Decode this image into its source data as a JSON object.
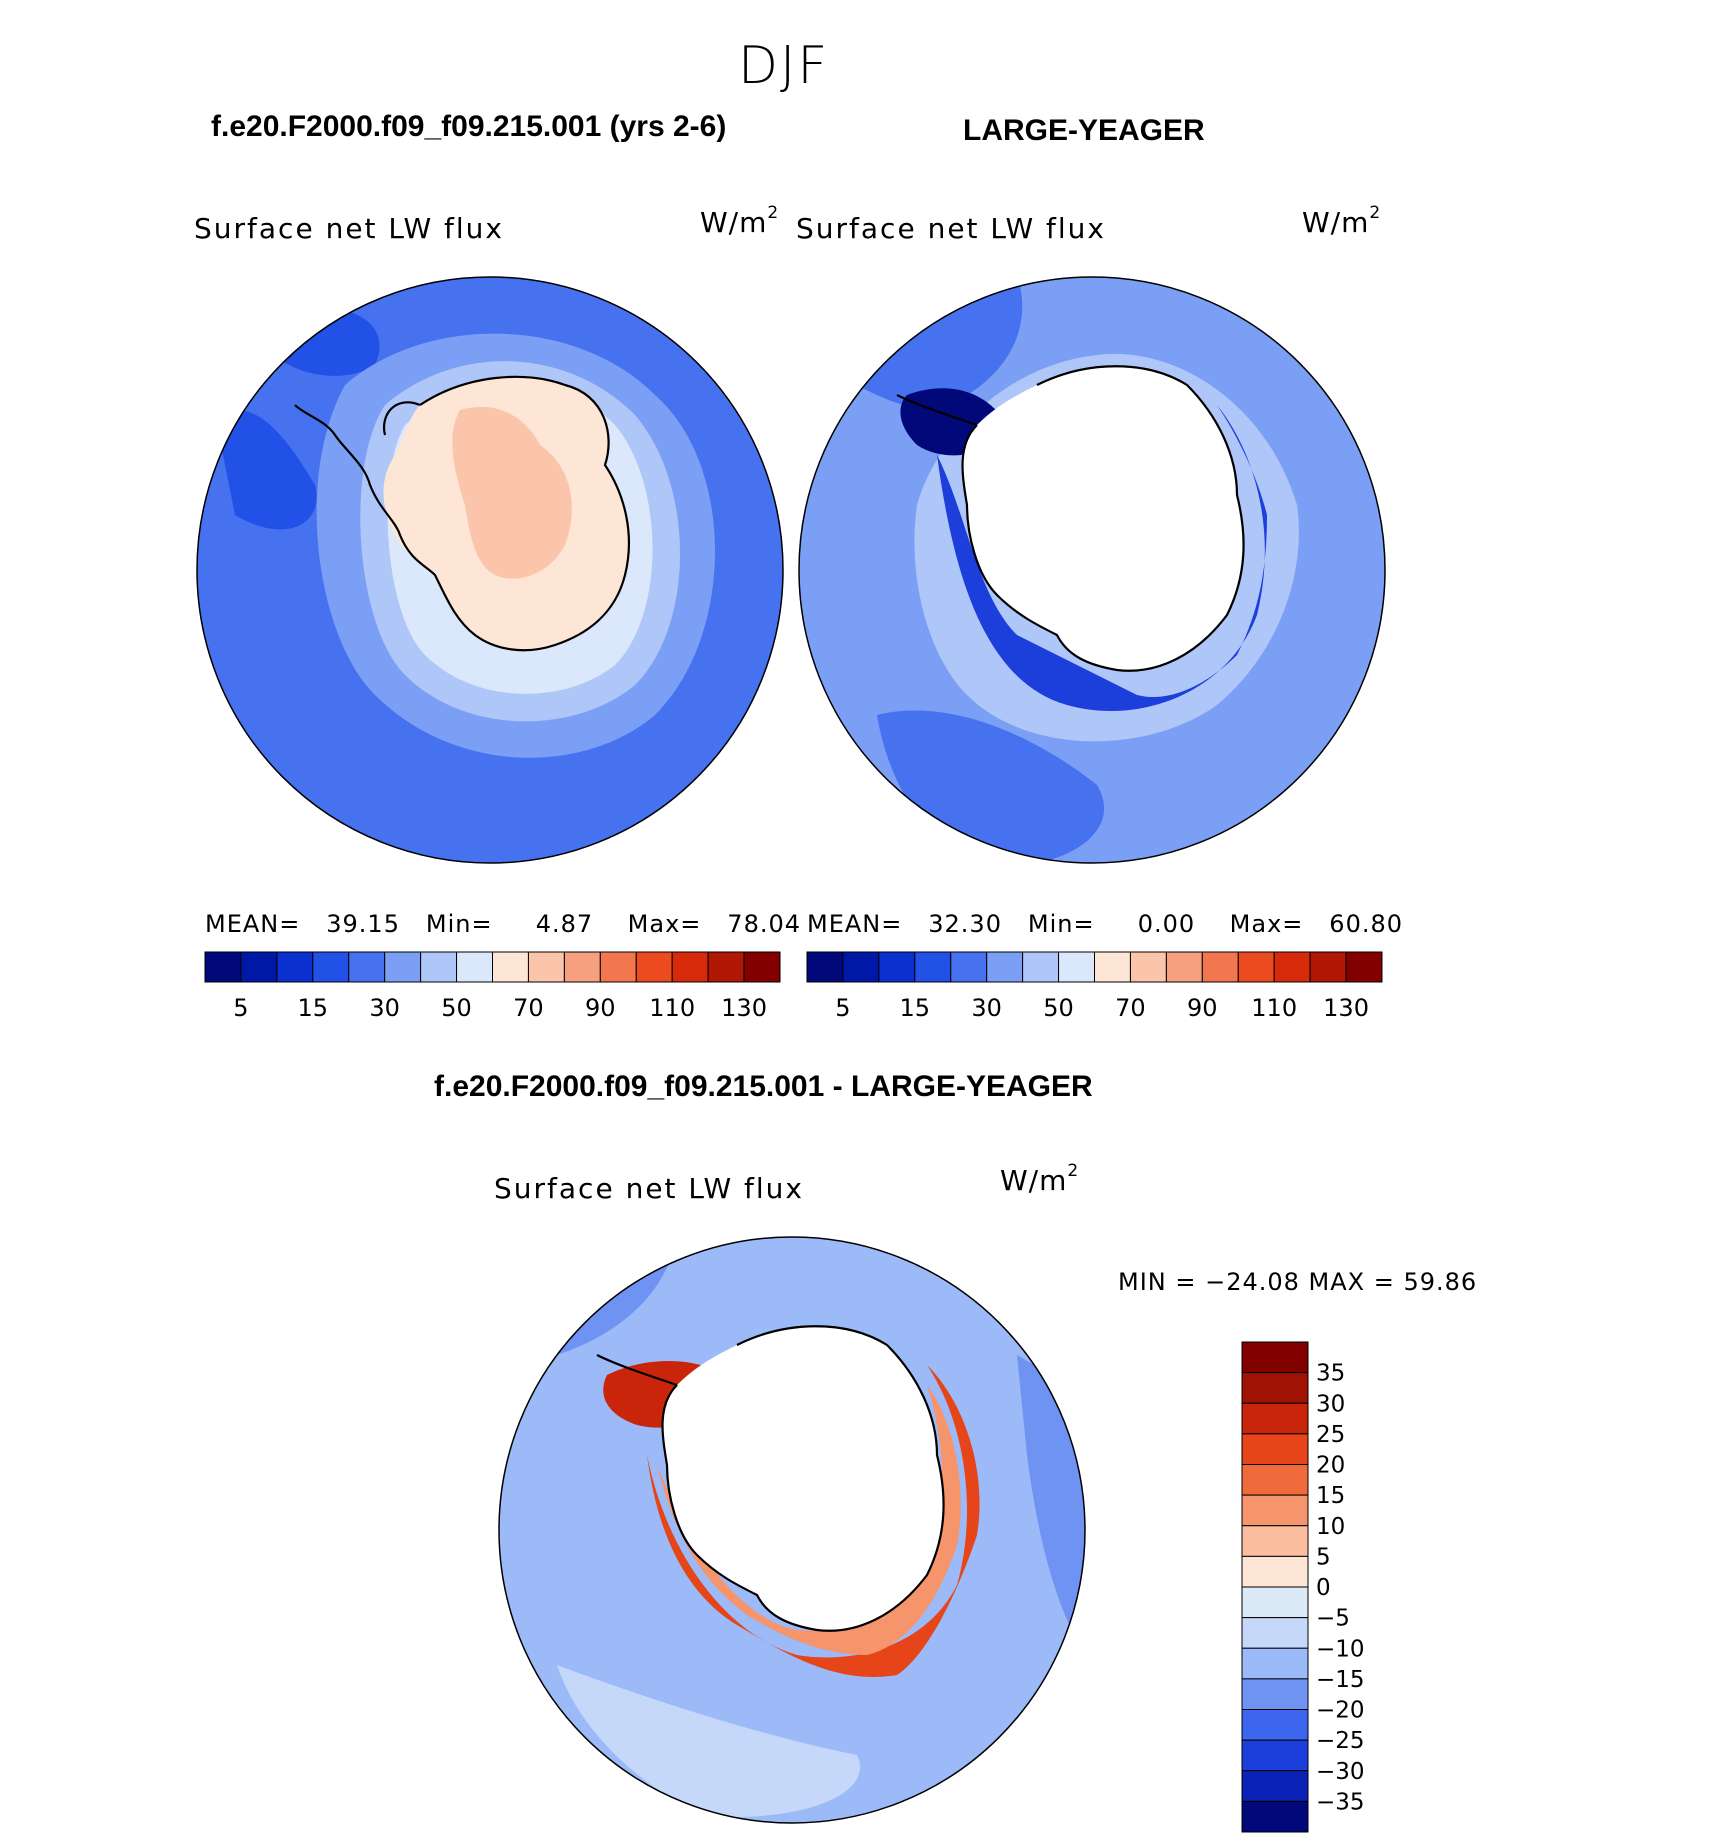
{
  "figure": {
    "title": "DJF",
    "variable": "Surface net LW flux",
    "units_text": "W/m",
    "units_sup": "2"
  },
  "panels": {
    "test": {
      "case": "f.e20.F2000.f09_f09.215.001 (yrs 2-6)",
      "mean_label": "MEAN=",
      "mean": "39.15",
      "min_label": "Min=",
      "min": "4.87",
      "max_label": "Max=",
      "max": "78.04"
    },
    "obs": {
      "case": "LARGE-YEAGER",
      "mean_label": "MEAN=",
      "mean": "32.30",
      "min_label": "Min=",
      "min": "0.00",
      "max_label": "Max=",
      "max": "60.80"
    },
    "diff": {
      "case": "f.e20.F2000.f09_f09.215.001 - LARGE-YEAGER",
      "minmax": "MIN = −24.08 MAX =   59.86"
    }
  },
  "colorbars": {
    "abs": {
      "colors": [
        "#00087a",
        "#0018a8",
        "#0a30cf",
        "#2251e8",
        "#4672ef",
        "#7b9ff5",
        "#afc6f8",
        "#dbe8fb",
        "#fde6d6",
        "#fbc5ac",
        "#f6a07f",
        "#f2774f",
        "#ec4a1f",
        "#d62a0a",
        "#b01805",
        "#820000"
      ],
      "tick_labels": [
        "5",
        "15",
        "30",
        "50",
        "70",
        "90",
        "110",
        "130"
      ]
    },
    "diff": {
      "colors": [
        "#00087a",
        "#0a22b5",
        "#1c3fdc",
        "#3d66ee",
        "#6f93f3",
        "#9cbaf7",
        "#c5d8fa",
        "#dceaf8",
        "#fde6d6",
        "#fbbf9f",
        "#f6946c",
        "#f06b3c",
        "#e6451a",
        "#c8250a",
        "#a01204",
        "#820000"
      ],
      "tick_labels": [
        "35",
        "30",
        "25",
        "20",
        "15",
        "10",
        "5",
        "0",
        "−5",
        "−10",
        "−15",
        "−20",
        "−25",
        "−30",
        "−35"
      ]
    },
    "map_colors": {
      "ocean": "#4672ef",
      "ocean_light": "#7b9ff5",
      "ocean_lighter": "#afc6f8",
      "ocean_dark": "#2251e8",
      "ice_pale": "#dbe8fb",
      "land_warm": "#fde6d6",
      "land_warmer": "#fbc5ac",
      "masked": "#ffffff"
    }
  },
  "chart_data": [
    {
      "type": "heatmap",
      "title": "f.e20.F2000.f09_f09.215.001 (yrs 2-6)",
      "variable": "Surface net LW flux",
      "units": "W/m2",
      "projection": "south polar stereographic",
      "stats": {
        "mean": 39.15,
        "min": 4.87,
        "max": 78.04
      },
      "contour_levels": [
        5,
        10,
        15,
        20,
        30,
        40,
        50,
        60,
        70,
        80,
        90,
        100,
        110,
        120,
        130
      ],
      "colorbar_ticks": [
        5,
        15,
        30,
        50,
        70,
        90,
        110,
        130
      ]
    },
    {
      "type": "heatmap",
      "title": "LARGE-YEAGER",
      "variable": "Surface net LW flux",
      "units": "W/m2",
      "projection": "south polar stereographic",
      "stats": {
        "mean": 32.3,
        "min": 0.0,
        "max": 60.8
      },
      "contour_levels": [
        5,
        10,
        15,
        20,
        30,
        40,
        50,
        60,
        70,
        80,
        90,
        100,
        110,
        120,
        130
      ],
      "colorbar_ticks": [
        5,
        15,
        30,
        50,
        70,
        90,
        110,
        130
      ]
    },
    {
      "type": "heatmap",
      "title": "f.e20.F2000.f09_f09.215.001 - LARGE-YEAGER",
      "variable": "Surface net LW flux",
      "units": "W/m2",
      "projection": "south polar stereographic",
      "stats": {
        "min": -24.08,
        "max": 59.86
      },
      "contour_levels": [
        -35,
        -30,
        -25,
        -20,
        -15,
        -10,
        -5,
        0,
        5,
        10,
        15,
        20,
        25,
        30,
        35
      ],
      "colorbar_ticks": [
        35,
        30,
        25,
        20,
        15,
        10,
        5,
        0,
        -5,
        -10,
        -15,
        -20,
        -25,
        -30,
        -35
      ]
    }
  ]
}
